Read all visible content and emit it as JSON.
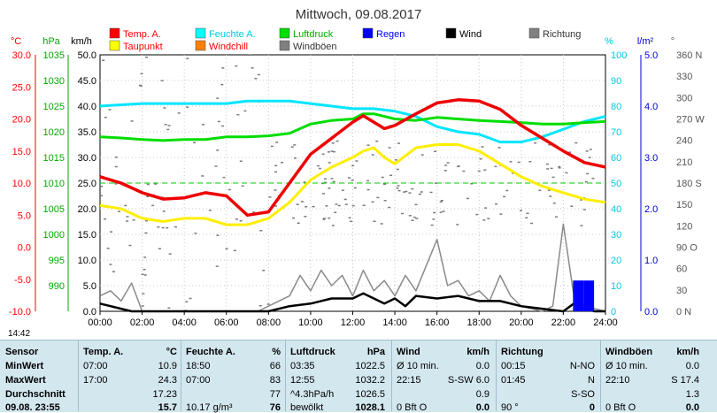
{
  "chart_data": {
    "type": "line",
    "title": "Mittwoch, 09.08.2017",
    "x_ticks": [
      "00:00",
      "02:00",
      "04:00",
      "06:00",
      "08:00",
      "10:00",
      "12:00",
      "14:00",
      "16:00",
      "18:00",
      "20:00",
      "22:00",
      "24:00"
    ],
    "legend": [
      {
        "name": "Temp. A.",
        "color": "#ff0000"
      },
      {
        "name": "Feuchte A.",
        "color": "#00ffff"
      },
      {
        "name": "Luftdruck",
        "color": "#00dd00"
      },
      {
        "name": "Regen",
        "color": "#0000ff"
      },
      {
        "name": "Wind",
        "color": "#000000"
      },
      {
        "name": "Richtung",
        "color": "#808080"
      },
      {
        "name": "Taupunkt",
        "color": "#ffff00"
      },
      {
        "name": "Windchill",
        "color": "#ff8000"
      },
      {
        "name": "Windböen",
        "color": "#808080"
      }
    ],
    "axes": {
      "temp": {
        "unit": "°C",
        "ticks": [
          "30.0",
          "25.0",
          "20.0",
          "15.0",
          "10.0",
          "5.0",
          "0.0",
          "-5.0",
          "-10.0"
        ]
      },
      "press": {
        "unit": "hPa",
        "ticks": [
          "1035",
          "1030",
          "1025",
          "1020",
          "1015",
          "1010",
          "1005",
          "1000",
          "995",
          "990"
        ]
      },
      "wind": {
        "unit": "km/h",
        "ticks": [
          "50.0",
          "45.0",
          "40.0",
          "35.0",
          "30.0",
          "25.0",
          "20.0",
          "15.0",
          "10.0",
          "5.0",
          "0.0"
        ]
      },
      "hum": {
        "unit": "%",
        "ticks": [
          "100",
          "90",
          "80",
          "70",
          "60",
          "50",
          "40",
          "30",
          "20",
          "10",
          "0"
        ]
      },
      "rain": {
        "unit": "l/m²",
        "ticks": [
          "5.0",
          "4.0",
          "3.0",
          "2.0",
          "1.0",
          "0.0"
        ]
      },
      "dir": {
        "unit": "°",
        "ticks": [
          "360 N",
          "330",
          "300",
          "270 W",
          "240",
          "210",
          "180 S",
          "150",
          "120",
          "90 O",
          "60",
          "30",
          "0 N"
        ]
      }
    },
    "temp_series": {
      "x": [
        0,
        0.5,
        1,
        2,
        3,
        4,
        5,
        6,
        7,
        8,
        9,
        10,
        11,
        12,
        12.5,
        13,
        13.5,
        14,
        15,
        16,
        17,
        18,
        19,
        20,
        21,
        22,
        23,
        24
      ],
      "y": [
        11,
        10.5,
        10,
        8.5,
        7.5,
        7.7,
        8.5,
        8,
        5,
        5.5,
        10,
        14.5,
        17,
        19.5,
        20.5,
        19.5,
        18.5,
        19,
        20.8,
        22.5,
        23,
        22.8,
        21.5,
        19,
        17,
        15,
        13.2,
        12.5
      ]
    },
    "dew_series": {
      "x": [
        0,
        1,
        2,
        3,
        4,
        5,
        6,
        7,
        8,
        9,
        10,
        11,
        12,
        12.5,
        13,
        13.5,
        14,
        15,
        16,
        17,
        18,
        19,
        20,
        21,
        22,
        23,
        24
      ],
      "y": [
        6.5,
        6,
        4.5,
        4,
        4.5,
        4.5,
        3.5,
        3.5,
        4.5,
        7,
        10.5,
        12.5,
        14,
        15,
        15.5,
        14,
        13,
        15.5,
        16,
        16,
        15,
        13,
        11,
        9.5,
        8.5,
        7.5,
        7
      ]
    },
    "humidity_series": {
      "x": [
        0,
        1,
        2,
        3,
        4,
        5,
        6,
        7,
        8,
        9,
        10,
        11,
        12,
        13,
        14,
        15,
        16,
        17,
        18,
        19,
        20,
        21,
        22,
        23,
        24
      ],
      "y": [
        80,
        80.5,
        81,
        81,
        81,
        81,
        81,
        82,
        82,
        82,
        81,
        80,
        79,
        79,
        78,
        76,
        72,
        70,
        69,
        66,
        66,
        68,
        71,
        74,
        76
      ]
    },
    "pressure_series": {
      "x": [
        0,
        1,
        2,
        3,
        4,
        5,
        6,
        7,
        8,
        9,
        10,
        11,
        12,
        12.5,
        13,
        13.5,
        14,
        15,
        16,
        17,
        18,
        19,
        20,
        21,
        22,
        23,
        24
      ],
      "y": [
        1024,
        1023.8,
        1023.5,
        1023.3,
        1023.5,
        1023.5,
        1024,
        1024,
        1024.2,
        1024.7,
        1026.5,
        1027.2,
        1027.5,
        1028.5,
        1028.5,
        1028,
        1027.5,
        1027.2,
        1027.8,
        1027.5,
        1027.2,
        1027,
        1026.8,
        1026.5,
        1026.5,
        1026.8,
        1027
      ]
    },
    "wind_series": {
      "x": [
        0,
        0.5,
        1,
        1.5,
        2,
        6,
        7.5,
        8,
        9,
        10,
        11,
        12,
        12.5,
        13,
        13.5,
        14,
        14.5,
        15,
        16,
        17,
        18,
        19,
        20,
        21,
        22,
        22.5,
        23,
        23.5,
        24
      ],
      "y": [
        1.5,
        1,
        0.5,
        0,
        0,
        0,
        0,
        0,
        1,
        1.5,
        2.5,
        2.5,
        3.5,
        2.5,
        1.5,
        2.5,
        1,
        3,
        2.5,
        3,
        2,
        2,
        1,
        0.5,
        0,
        1.5,
        0.5,
        0,
        0
      ]
    },
    "gust_series": {
      "x": [
        0,
        0.5,
        1,
        1.5,
        2,
        6,
        7.5,
        8,
        9,
        9.5,
        10,
        10.5,
        11,
        11.5,
        12,
        12.5,
        13,
        13.5,
        14,
        14.5,
        15,
        15.5,
        16,
        16.5,
        17,
        17.5,
        18,
        18.5,
        19,
        19.5,
        20,
        21,
        21.5,
        22,
        22.5,
        23,
        24
      ],
      "y": [
        3,
        4,
        2,
        5.5,
        0,
        0,
        0,
        1,
        3,
        7,
        4,
        8,
        5,
        7,
        3,
        8,
        4,
        6,
        3,
        7,
        4,
        9,
        14,
        5,
        6,
        3,
        4,
        2,
        7,
        3,
        1,
        0,
        1,
        17,
        3,
        1,
        0
      ]
    },
    "rain_series": {
      "x": [
        22.5,
        23
      ],
      "y": [
        0.6,
        0.6
      ]
    },
    "dewpoint_reference": 10
  },
  "footer": {
    "time_left": "14:42",
    "row_labels": [
      "Sensor",
      "MinWert",
      "MaxWert",
      "Durchschnitt",
      "09.08. 23:55"
    ],
    "columns": [
      {
        "header": "Temp. A.",
        "unit": "°C",
        "rows": [
          [
            "07:00",
            "10.9"
          ],
          [
            "17:00",
            "24.3"
          ],
          [
            "",
            "17.23"
          ],
          [
            "",
            "15.7"
          ]
        ]
      },
      {
        "header": "Feuchte A.",
        "unit": "%",
        "rows": [
          [
            "18:50",
            "66"
          ],
          [
            "07:00",
            "83"
          ],
          [
            "",
            "77"
          ],
          [
            "10.17 g/m³",
            "76"
          ]
        ]
      },
      {
        "header": "Luftdruck",
        "unit": "hPa",
        "rows": [
          [
            "03:35",
            "1022.5"
          ],
          [
            "12:55",
            "1032.2"
          ],
          [
            "^4.3hPa/h",
            "1026.5"
          ],
          [
            "bewölkt",
            "1028.1"
          ]
        ]
      },
      {
        "header": "Wind",
        "unit": "km/h",
        "rows": [
          [
            "Ø 10 min.",
            "0.0"
          ],
          [
            "22:15",
            "S-SW 6.0"
          ],
          [
            "",
            "0.9"
          ],
          [
            "0 Bft O",
            "0.0"
          ]
        ]
      },
      {
        "header": "Richtung",
        "unit": "",
        "rows": [
          [
            "00:15",
            "N-NO"
          ],
          [
            "01:45",
            "N"
          ],
          [
            "",
            "S-SO"
          ],
          [
            "90 °",
            "0"
          ]
        ]
      },
      {
        "header": "Windböen",
        "unit": "km/h",
        "rows": [
          [
            "Ø 10 min.",
            "0.0"
          ],
          [
            "22:10",
            "S 17.4"
          ],
          [
            "",
            "1.3"
          ],
          [
            "0 Bft O",
            "0.0"
          ]
        ]
      }
    ]
  }
}
